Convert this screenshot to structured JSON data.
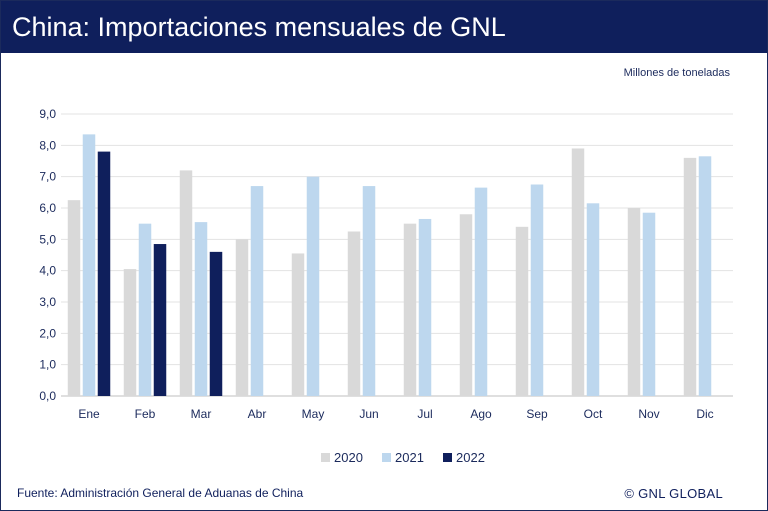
{
  "header": {
    "title": "China: Importaciones mensuales de GNL"
  },
  "unit_label": "Millones de toneladas",
  "footer": {
    "source": "Fuente: Administración General de Aduanas de China",
    "brand": "© GNL GLOBAL"
  },
  "colors": {
    "header_bg": "#0f1f5c",
    "series_2020": "#d9d9d9",
    "series_2021": "#bdd7ee",
    "series_2022": "#0f1f5c"
  },
  "chart_data": {
    "type": "bar",
    "title": "China: Importaciones mensuales de GNL",
    "ylabel": "Millones de toneladas",
    "ylim": [
      0,
      9
    ],
    "yticks": [
      "0,0",
      "1,0",
      "2,0",
      "3,0",
      "4,0",
      "5,0",
      "6,0",
      "7,0",
      "8,0",
      "9,0"
    ],
    "grid": true,
    "legend_position": "bottom",
    "categories": [
      "Ene",
      "Feb",
      "Mar",
      "Abr",
      "May",
      "Jun",
      "Jul",
      "Ago",
      "Sep",
      "Oct",
      "Nov",
      "Dic"
    ],
    "series": [
      {
        "name": "2020",
        "color": "#d9d9d9",
        "values": [
          6.25,
          4.05,
          7.2,
          5.0,
          4.55,
          5.25,
          5.5,
          5.8,
          5.4,
          7.9,
          6.0,
          7.6
        ]
      },
      {
        "name": "2021",
        "color": "#bdd7ee",
        "values": [
          8.35,
          5.5,
          5.55,
          6.7,
          7.0,
          6.7,
          5.65,
          6.65,
          6.75,
          6.15,
          5.85,
          7.65
        ]
      },
      {
        "name": "2022",
        "color": "#0f1f5c",
        "values": [
          7.8,
          4.85,
          4.6,
          null,
          null,
          null,
          null,
          null,
          null,
          null,
          null,
          null
        ]
      }
    ]
  }
}
